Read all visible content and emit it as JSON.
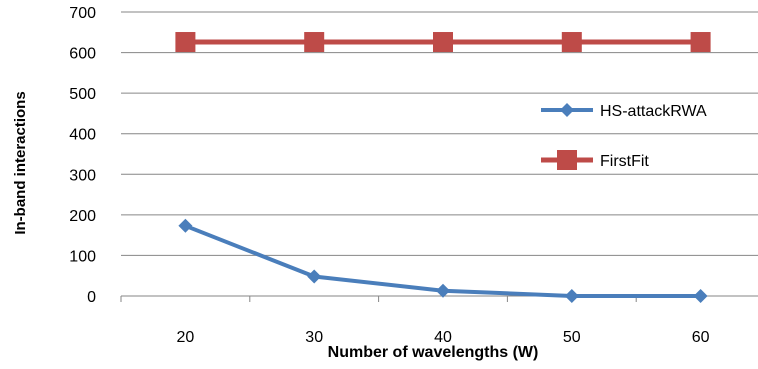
{
  "chart_data": {
    "type": "line",
    "title": "",
    "xlabel": "Number of wavelengths (W)",
    "ylabel": "In-band interactions",
    "categories": [
      "20",
      "30",
      "40",
      "50",
      "60"
    ],
    "ylim": [
      0,
      700
    ],
    "yticks": [
      0,
      100,
      200,
      300,
      400,
      500,
      600,
      700
    ],
    "grid": "horizontal",
    "legend_position": "right",
    "series": [
      {
        "name": "HS-attackRWA",
        "values": [
          173,
          48,
          13,
          0,
          0
        ],
        "color": "#4a7ebb",
        "marker": "diamond"
      },
      {
        "name": "FirstFit",
        "values": [
          626,
          626,
          626,
          626,
          626
        ],
        "color": "#be4b48",
        "marker": "square"
      }
    ]
  }
}
